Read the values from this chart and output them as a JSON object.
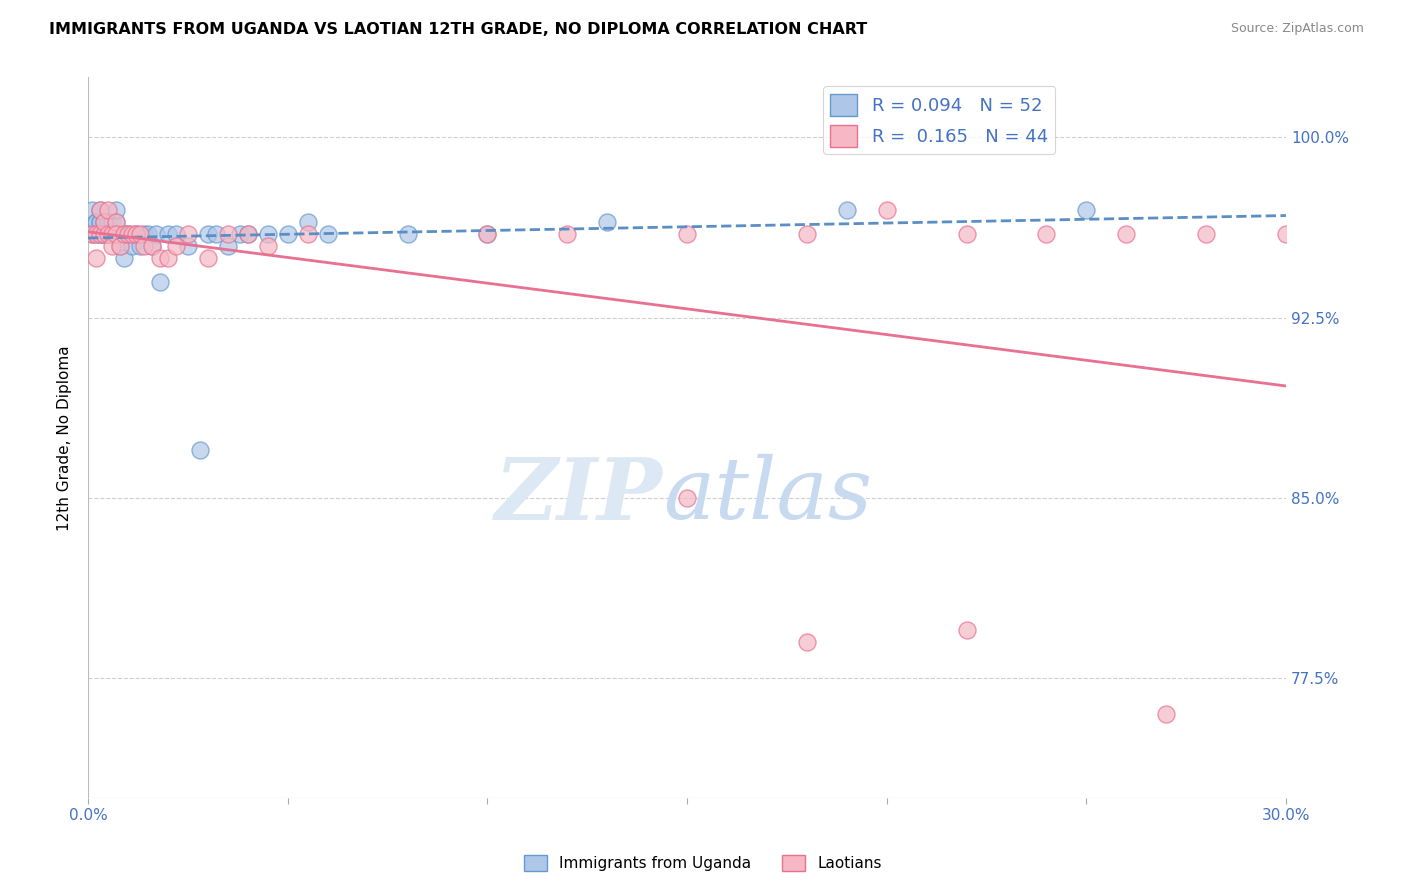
{
  "title": "IMMIGRANTS FROM UGANDA VS LAOTIAN 12TH GRADE, NO DIPLOMA CORRELATION CHART",
  "source": "Source: ZipAtlas.com",
  "ylabel": "12th Grade, No Diploma",
  "ytick_labels": [
    "100.0%",
    "92.5%",
    "85.0%",
    "77.5%"
  ],
  "ytick_values": [
    1.0,
    0.925,
    0.85,
    0.775
  ],
  "xlim": [
    0.0,
    0.3
  ],
  "ylim": [
    0.725,
    1.025
  ],
  "legend_text": [
    "R = 0.094   N = 52",
    "R =  0.165   N = 44"
  ],
  "legend_labels": [
    "Immigrants from Uganda",
    "Laotians"
  ],
  "blue_scatter_face": "#aec6e8",
  "blue_scatter_edge": "#6699cc",
  "pink_scatter_face": "#f5b8c4",
  "pink_scatter_edge": "#e87090",
  "blue_line_color": "#5b8ec4",
  "pink_line_color": "#e87090",
  "legend_text_color": "#4472c4",
  "axis_tick_color": "#4472c4",
  "grid_color": "#d0d0d0",
  "watermark_zip_color": "#dde8f5",
  "watermark_atlas_color": "#c8daf0",
  "uganda_x": [
    0.001,
    0.001,
    0.002,
    0.002,
    0.002,
    0.003,
    0.003,
    0.003,
    0.003,
    0.003,
    0.004,
    0.004,
    0.004,
    0.005,
    0.005,
    0.005,
    0.006,
    0.006,
    0.007,
    0.007,
    0.007,
    0.008,
    0.008,
    0.009,
    0.009,
    0.01,
    0.011,
    0.012,
    0.013,
    0.014,
    0.015,
    0.016,
    0.017,
    0.018,
    0.02,
    0.022,
    0.025,
    0.028,
    0.03,
    0.032,
    0.035,
    0.038,
    0.04,
    0.045,
    0.05,
    0.055,
    0.06,
    0.08,
    0.1,
    0.13,
    0.19,
    0.25
  ],
  "uganda_y": [
    0.97,
    0.96,
    0.965,
    0.96,
    0.965,
    0.96,
    0.96,
    0.965,
    0.965,
    0.97,
    0.96,
    0.965,
    0.96,
    0.96,
    0.965,
    0.96,
    0.965,
    0.96,
    0.96,
    0.965,
    0.97,
    0.96,
    0.955,
    0.96,
    0.95,
    0.96,
    0.955,
    0.96,
    0.955,
    0.96,
    0.96,
    0.955,
    0.96,
    0.94,
    0.96,
    0.96,
    0.955,
    0.87,
    0.96,
    0.96,
    0.955,
    0.96,
    0.96,
    0.96,
    0.96,
    0.965,
    0.96,
    0.96,
    0.96,
    0.965,
    0.97,
    0.97
  ],
  "laotian_x": [
    0.001,
    0.002,
    0.002,
    0.003,
    0.003,
    0.004,
    0.004,
    0.005,
    0.005,
    0.006,
    0.006,
    0.007,
    0.007,
    0.008,
    0.009,
    0.01,
    0.011,
    0.012,
    0.013,
    0.014,
    0.016,
    0.018,
    0.02,
    0.022,
    0.025,
    0.03,
    0.035,
    0.04,
    0.045,
    0.055,
    0.1,
    0.12,
    0.15,
    0.18,
    0.2,
    0.22,
    0.24,
    0.26,
    0.28,
    0.3,
    0.15,
    0.18,
    0.22,
    0.27
  ],
  "laotian_y": [
    0.96,
    0.96,
    0.95,
    0.97,
    0.96,
    0.96,
    0.965,
    0.97,
    0.96,
    0.96,
    0.955,
    0.965,
    0.96,
    0.955,
    0.96,
    0.96,
    0.96,
    0.96,
    0.96,
    0.955,
    0.955,
    0.95,
    0.95,
    0.955,
    0.96,
    0.95,
    0.96,
    0.96,
    0.955,
    0.96,
    0.96,
    0.96,
    0.96,
    0.96,
    0.97,
    0.96,
    0.96,
    0.96,
    0.96,
    0.96,
    0.85,
    0.79,
    0.795,
    0.76
  ]
}
